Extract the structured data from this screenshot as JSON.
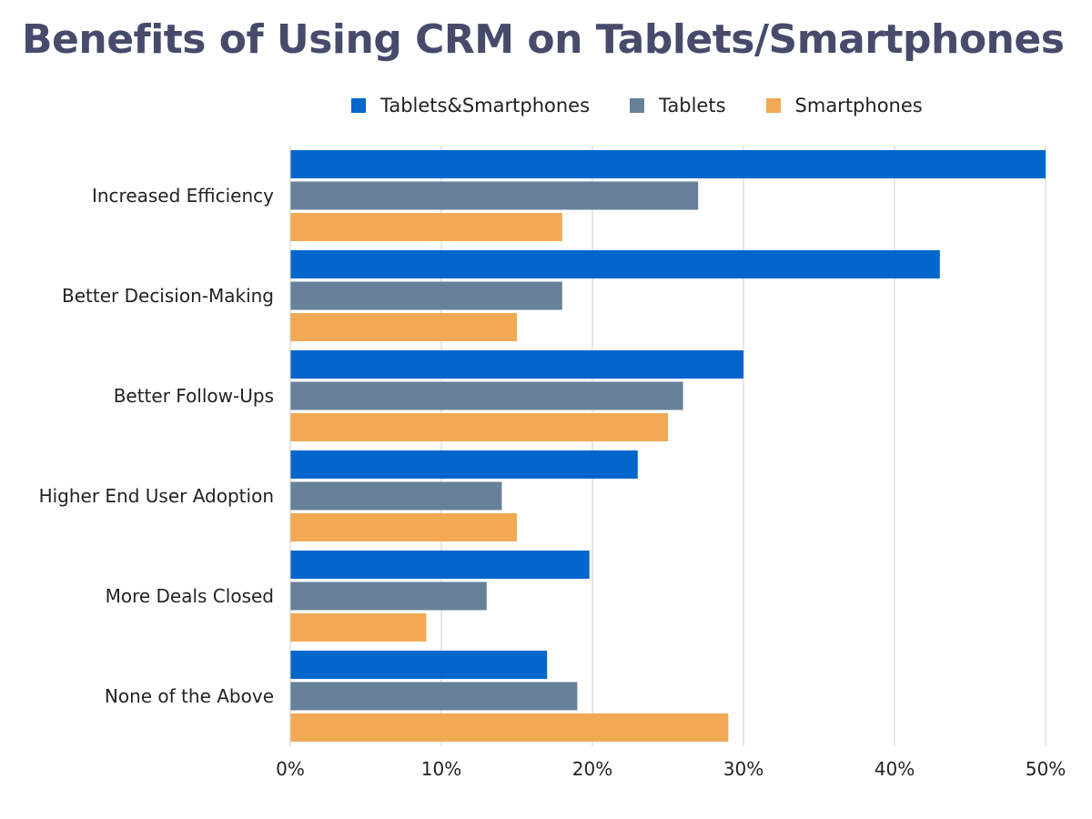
{
  "chart_data": {
    "type": "bar",
    "orientation": "horizontal",
    "title": "Benefits of Using CRM on Tablets/Smartphones",
    "categories": [
      "Increased Efficiency",
      "Better Decision-Making",
      "Better Follow-Ups",
      "Higher End User Adoption",
      "More Deals Closed",
      "None of the Above"
    ],
    "series": [
      {
        "name": "Tablets&Smartphones",
        "color": "#0066cc",
        "values": [
          50,
          43,
          30,
          23,
          19.8,
          17
        ]
      },
      {
        "name": "Tablets",
        "color": "#678199",
        "values": [
          27,
          18,
          26,
          14,
          13,
          19
        ]
      },
      {
        "name": "Smartphones",
        "color": "#f2a955",
        "values": [
          18,
          15,
          25,
          15,
          9,
          29
        ]
      }
    ],
    "xlim": [
      0,
      50
    ],
    "xticks": [
      0,
      10,
      20,
      30,
      40,
      50
    ],
    "tick_suffix": "%",
    "grid": true,
    "legend_position": "top-center",
    "xlabel": "",
    "ylabel": ""
  }
}
